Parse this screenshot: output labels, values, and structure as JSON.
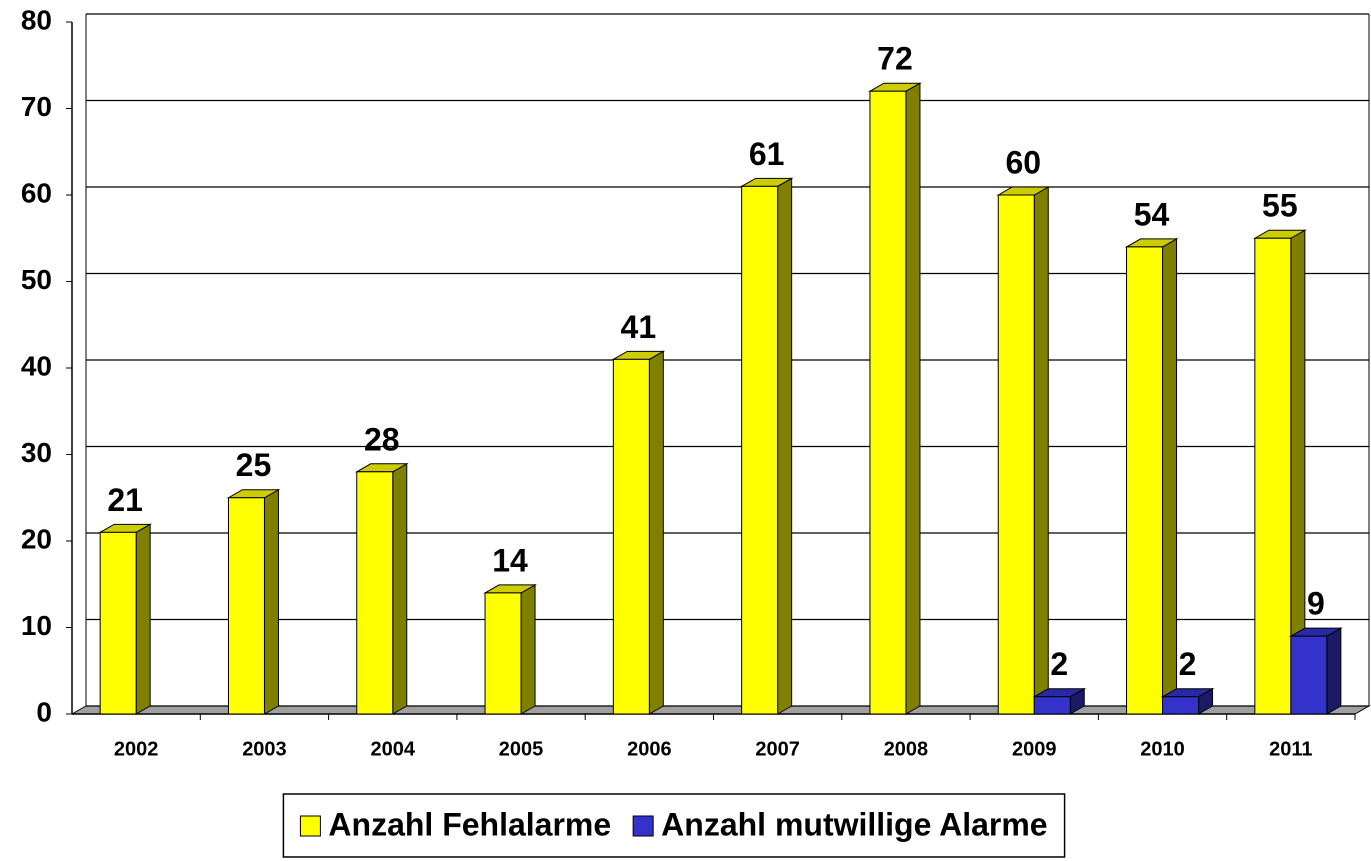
{
  "chart_data": {
    "type": "bar3d",
    "categories": [
      "2002",
      "2003",
      "2004",
      "2005",
      "2006",
      "2007",
      "2008",
      "2009",
      "2010",
      "2011"
    ],
    "series": [
      {
        "name": "Anzahl Fehlalarme",
        "color": "#ffff00",
        "values": [
          21,
          25,
          28,
          14,
          41,
          61,
          72,
          60,
          54,
          55
        ]
      },
      {
        "name": "Anzahl mutwillige Alarme",
        "color": "#3333cc",
        "values": [
          null,
          null,
          null,
          null,
          null,
          null,
          null,
          2,
          2,
          9
        ]
      }
    ],
    "ylim": [
      0,
      80
    ],
    "yticks": [
      0,
      10,
      20,
      30,
      40,
      50,
      60,
      70,
      80
    ],
    "grid": true,
    "legend": "bottom",
    "data_labels": true
  }
}
